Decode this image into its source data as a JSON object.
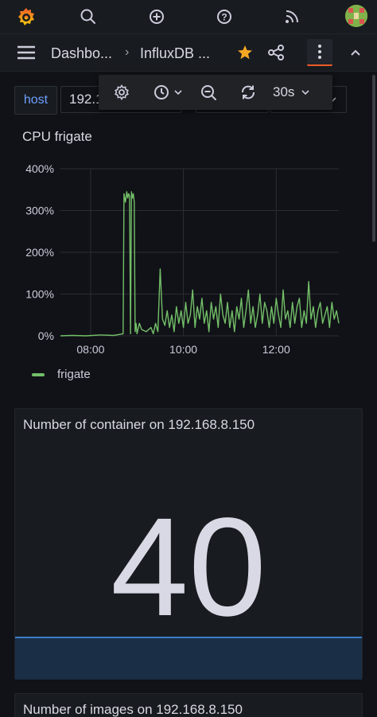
{
  "appbar": {
    "icons": [
      "grafana-logo-icon",
      "search-icon",
      "plus-circle-icon",
      "help-icon",
      "rss-icon",
      "avatar"
    ]
  },
  "navbar": {
    "crumb_dashboards": "Dashbo...",
    "crumb_separator": "›",
    "crumb_dashboard": "InfluxDB ..."
  },
  "variables": {
    "label": "host",
    "value": "192.1"
  },
  "toolbar": {
    "refresh_interval": "30s"
  },
  "cpu_panel": {
    "title": "CPU frigate",
    "legend": "frigate",
    "color": "#73bf69"
  },
  "chart_data": {
    "type": "line",
    "title": "CPU frigate",
    "xlabel": "",
    "ylabel": "",
    "x_ticks": [
      "08:00",
      "10:00",
      "12:00"
    ],
    "y_ticks": [
      "0%",
      "100%",
      "200%",
      "300%",
      "400%"
    ],
    "ylim": [
      0,
      400
    ],
    "xlim_hours": [
      7.35,
      13.35
    ],
    "grid": true,
    "legend_position": "bottom-left",
    "series": [
      {
        "name": "frigate",
        "color": "#73bf69",
        "x": [
          7.35,
          7.6,
          7.9,
          8.2,
          8.5,
          8.7,
          8.72,
          8.75,
          8.78,
          8.8,
          8.82,
          8.84,
          8.86,
          8.88,
          8.9,
          8.92,
          8.94,
          8.96,
          8.98,
          9.0,
          9.05,
          9.1,
          9.2,
          9.3,
          9.35,
          9.4,
          9.45,
          9.5,
          9.55,
          9.6,
          9.65,
          9.7,
          9.75,
          9.8,
          9.85,
          9.9,
          9.95,
          10.0,
          10.05,
          10.1,
          10.15,
          10.2,
          10.25,
          10.3,
          10.35,
          10.4,
          10.45,
          10.5,
          10.55,
          10.6,
          10.65,
          10.7,
          10.75,
          10.8,
          10.85,
          10.9,
          10.95,
          11.0,
          11.05,
          11.1,
          11.15,
          11.2,
          11.25,
          11.3,
          11.35,
          11.4,
          11.45,
          11.5,
          11.55,
          11.6,
          11.65,
          11.7,
          11.75,
          11.8,
          11.85,
          11.9,
          11.95,
          12.0,
          12.05,
          12.1,
          12.15,
          12.2,
          12.25,
          12.3,
          12.35,
          12.4,
          12.45,
          12.5,
          12.55,
          12.6,
          12.65,
          12.7,
          12.75,
          12.8,
          12.85,
          12.9,
          12.95,
          13.0,
          13.05,
          13.1,
          13.15,
          13.2,
          13.25,
          13.3,
          13.35
        ],
        "values": [
          0,
          1,
          0,
          2,
          1,
          5,
          340,
          320,
          345,
          330,
          340,
          335,
          5,
          345,
          330,
          340,
          320,
          10,
          30,
          5,
          30,
          15,
          10,
          20,
          5,
          30,
          10,
          160,
          40,
          25,
          60,
          20,
          50,
          10,
          70,
          30,
          60,
          20,
          80,
          30,
          50,
          110,
          20,
          70,
          40,
          90,
          30,
          60,
          10,
          80,
          40,
          70,
          20,
          100,
          50,
          30,
          80,
          20,
          60,
          10,
          70,
          40,
          90,
          20,
          60,
          110,
          30,
          70,
          20,
          50,
          100,
          30,
          80,
          60,
          20,
          70,
          30,
          90,
          50,
          20,
          110,
          40,
          60,
          20,
          80,
          30,
          70,
          90,
          20,
          60,
          30,
          130,
          40,
          70,
          20,
          60,
          80,
          30,
          50,
          70,
          20,
          80,
          40,
          60,
          30
        ]
      }
    ]
  },
  "stat_panels": [
    {
      "title": "Number of container on 192.168.8.150",
      "value": "40"
    },
    {
      "title": "Number of images on 192.168.8.150"
    }
  ]
}
